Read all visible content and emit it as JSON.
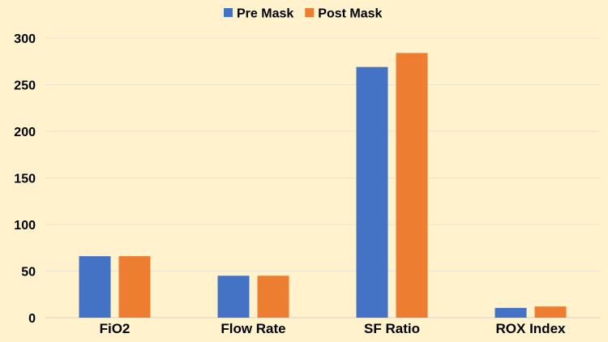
{
  "chart_data": {
    "type": "bar",
    "title": "",
    "xlabel": "",
    "ylabel": "",
    "categories": [
      "FiO2",
      "Flow Rate",
      "SF Ratio",
      "ROX Index"
    ],
    "series": [
      {
        "name": "Pre Mask",
        "color": "#4472C4",
        "values": [
          66,
          45,
          269,
          10.5
        ]
      },
      {
        "name": "Post Mask",
        "color": "#ED7D31",
        "values": [
          66,
          45,
          284,
          12
        ]
      }
    ],
    "ylim": [
      0,
      300
    ],
    "yticks": [
      0,
      50,
      100,
      150,
      200,
      250,
      300
    ],
    "grid": true,
    "legend_position": "top-center"
  }
}
